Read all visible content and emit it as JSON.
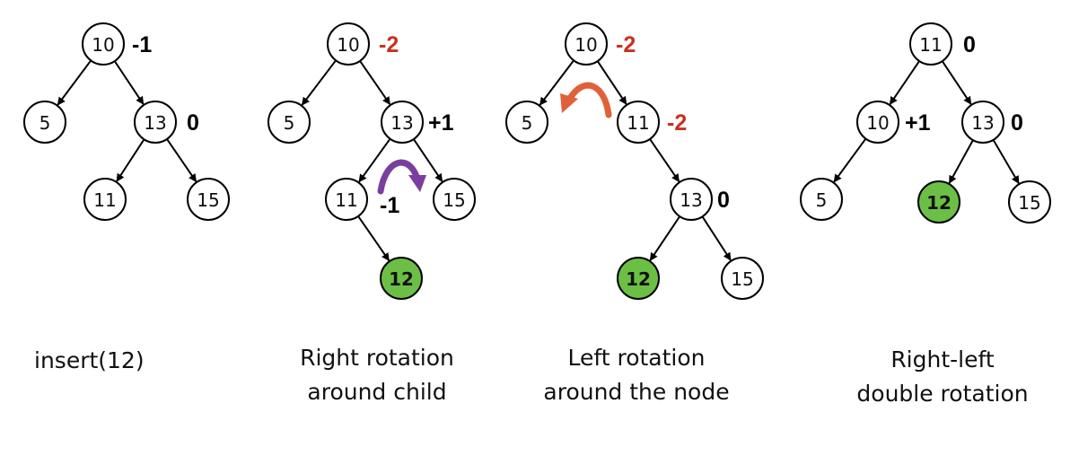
{
  "colors": {
    "highlight_node": "#6cbf45",
    "imbalance_text": "#c8321e",
    "right_rotation_arrow": "#7a3f9e",
    "left_rotation_arrow": "#e0603a"
  },
  "panels": [
    {
      "caption": [
        "insert(12)"
      ],
      "nodes": [
        {
          "id": "n10",
          "label": "10",
          "bf": "-1"
        },
        {
          "id": "n5",
          "label": "5"
        },
        {
          "id": "n13",
          "label": "13",
          "bf": "0"
        },
        {
          "id": "n11",
          "label": "11"
        },
        {
          "id": "n15",
          "label": "15"
        }
      ]
    },
    {
      "caption": [
        "Right rotation",
        "around child"
      ],
      "nodes": [
        {
          "id": "n10",
          "label": "10",
          "bf": "-2",
          "bf_alert": true
        },
        {
          "id": "n5",
          "label": "5"
        },
        {
          "id": "n13",
          "label": "13",
          "bf": "+1"
        },
        {
          "id": "n11",
          "label": "11",
          "bf": "-1"
        },
        {
          "id": "n15",
          "label": "15"
        },
        {
          "id": "n12",
          "label": "12",
          "highlight": true
        }
      ]
    },
    {
      "caption": [
        "Left rotation",
        "around the node"
      ],
      "nodes": [
        {
          "id": "n10",
          "label": "10",
          "bf": "-2",
          "bf_alert": true
        },
        {
          "id": "n5",
          "label": "5"
        },
        {
          "id": "n11",
          "label": "11",
          "bf": "-2",
          "bf_alert": true
        },
        {
          "id": "n13",
          "label": "13",
          "bf": "0"
        },
        {
          "id": "n12",
          "label": "12",
          "highlight": true
        },
        {
          "id": "n15",
          "label": "15"
        }
      ]
    },
    {
      "caption": [
        "Right-left",
        "double rotation"
      ],
      "nodes": [
        {
          "id": "n11",
          "label": "11",
          "bf": "0"
        },
        {
          "id": "n10",
          "label": "10",
          "bf": "+1"
        },
        {
          "id": "n13",
          "label": "13",
          "bf": "0"
        },
        {
          "id": "n5",
          "label": "5"
        },
        {
          "id": "n12",
          "label": "12",
          "highlight": true
        },
        {
          "id": "n15",
          "label": "15"
        }
      ]
    }
  ]
}
